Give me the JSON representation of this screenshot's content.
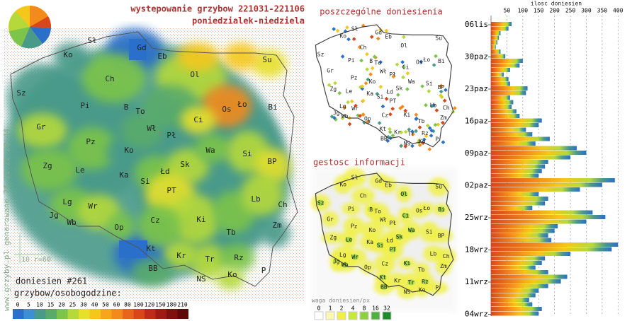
{
  "main_map": {
    "title": "wystepowanie grzybow 221031-221106",
    "subtitle": "poniedzialek-niedziela",
    "city_labels": [
      "Sł",
      "Gd",
      "Ko",
      "Eb",
      "Su",
      "Ol",
      "Ch",
      "Sz",
      "Pi",
      "B",
      "To",
      "Os",
      "Ło",
      "Bi",
      "Gr",
      "Wł",
      "Pł",
      "Ci",
      "Pz",
      "Ko",
      "Wa",
      "Si",
      "Zg",
      "Le",
      "Ka",
      "Łd",
      "Sk",
      "BP",
      "Si",
      "Lg",
      "PT",
      "Lb",
      "Ch",
      "Jg",
      "Wb",
      "Wr",
      "Op",
      "Ki",
      "Cz",
      "Zm",
      "Tb",
      "Kt",
      "Kr",
      "Tr",
      "Rz",
      "BB",
      "Ko",
      "P",
      "NS"
    ],
    "report_count": "doniesien #261",
    "scale_value": "10",
    "scale_radius": "r=60",
    "legend_title": "grzybow/osobogodzine:",
    "legend_values": [
      0,
      5,
      10,
      15,
      20,
      25,
      30,
      40,
      50,
      60,
      80,
      100,
      120,
      150,
      180,
      210
    ],
    "legend_colors": [
      "#2a6fc9",
      "#3d8fd4",
      "#4a9a8a",
      "#5aab6a",
      "#7cc44a",
      "#b5d93a",
      "#e6e02a",
      "#f5c71a",
      "#f7a51a",
      "#f28a1c",
      "#e8661c",
      "#d9461a",
      "#c02a18",
      "#a01a14",
      "#80100f",
      "#600808"
    ]
  },
  "watermark": "www.grzyby.pl generowane 24.11.22 20:44",
  "reports_map": {
    "title": "poszczególne doniesienia"
  },
  "density_map": {
    "title": "gestosc informacji",
    "legend_title": "waga doniesien/px",
    "legend_values": [
      0,
      1,
      2,
      4,
      8,
      16,
      32
    ],
    "legend_colors": [
      "#ffffff",
      "#f8f8b0",
      "#f0f040",
      "#c8e838",
      "#8fd040",
      "#50b040",
      "#1f8a2a"
    ]
  },
  "chart_data": {
    "type": "bar",
    "orientation": "horizontal",
    "title": "ilosc doniesien",
    "categories": [
      "06lis",
      null,
      null,
      null,
      null,
      null,
      null,
      "30paz",
      null,
      null,
      null,
      null,
      null,
      null,
      "23paz",
      null,
      null,
      null,
      null,
      null,
      null,
      "16paz",
      null,
      null,
      null,
      null,
      null,
      null,
      "09paz",
      null,
      null,
      null,
      null,
      null,
      null,
      "02paz",
      null,
      null,
      null,
      null,
      null,
      null,
      "25wrz",
      null,
      null,
      null,
      null,
      null,
      null,
      "18wrz",
      null,
      null,
      null,
      null,
      null,
      null,
      "11wrz",
      null,
      null,
      null,
      null,
      null,
      null,
      "04wrz"
    ],
    "values": [
      65,
      55,
      30,
      25,
      20,
      15,
      30,
      45,
      100,
      90,
      60,
      40,
      55,
      60,
      115,
      110,
      60,
      70,
      65,
      80,
      90,
      160,
      150,
      110,
      130,
      185,
      140,
      270,
      300,
      250,
      180,
      170,
      160,
      150,
      390,
      350,
      280,
      150,
      180,
      170,
      130,
      320,
      360,
      300,
      210,
      200,
      180,
      190,
      400,
      380,
      250,
      170,
      160,
      140,
      180,
      240,
      220,
      180,
      150,
      140,
      120,
      130,
      160,
      150
    ],
    "xlim": [
      0,
      415
    ],
    "xticks": [
      50,
      100,
      150,
      200,
      250,
      300,
      350,
      400
    ],
    "grid": true
  }
}
